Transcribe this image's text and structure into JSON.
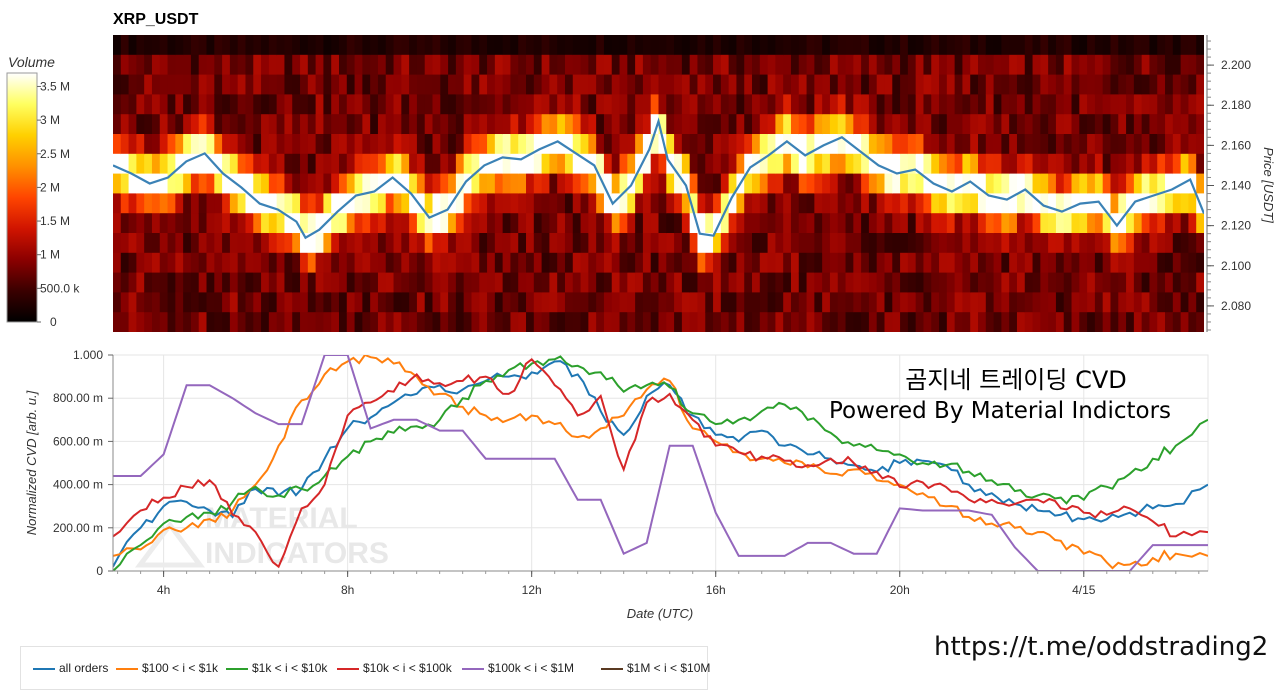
{
  "chart_data": [
    {
      "type": "heatmap",
      "title": "XRP_USDT",
      "colorbar": {
        "label": "Volume",
        "ticks": [
          "0",
          "500.0 k",
          "1 M",
          "1.5 M",
          "2 M",
          "2.5 M",
          "3 M",
          "3.5 M"
        ],
        "values": [
          0,
          500000,
          1000000,
          1500000,
          2000000,
          2500000,
          3000000,
          3500000
        ],
        "colors": [
          "#000000",
          "#3a0000",
          "#8b0000",
          "#d01400",
          "#ff4500",
          "#ff9000",
          "#ffd000",
          "#ffff60",
          "#ffffff"
        ]
      },
      "ylabel": "Price [USDT]",
      "yticks": [
        "2.080",
        "2.100",
        "2.120",
        "2.140",
        "2.160",
        "2.180",
        "2.200"
      ],
      "ytick_values": [
        2.08,
        2.1,
        2.12,
        2.14,
        2.16,
        2.18,
        2.2
      ],
      "ylim": [
        2.067,
        2.215
      ],
      "price_series": {
        "name": "price",
        "color": "#3b82b6",
        "x_hours": [
          2.9,
          3.3,
          3.7,
          4.1,
          4.5,
          4.9,
          5.3,
          5.7,
          6.1,
          6.5,
          6.9,
          7.1,
          7.4,
          7.8,
          8.2,
          8.6,
          9.0,
          9.4,
          9.8,
          10.2,
          10.6,
          11.0,
          11.4,
          11.8,
          12.2,
          12.6,
          13.0,
          13.4,
          13.8,
          14.2,
          14.6,
          14.8,
          15.0,
          15.4,
          15.7,
          16.0,
          16.4,
          16.8,
          17.2,
          17.6,
          18.0,
          18.4,
          18.8,
          19.2,
          19.6,
          20.0,
          20.4,
          20.8,
          21.2,
          21.6,
          22.0,
          22.4,
          22.8,
          23.2,
          23.6,
          24.0,
          24.4,
          24.8,
          25.2,
          25.6,
          26.0,
          26.4,
          26.7
        ],
        "price": [
          2.15,
          2.146,
          2.141,
          2.144,
          2.152,
          2.156,
          2.146,
          2.139,
          2.131,
          2.128,
          2.122,
          2.114,
          2.118,
          2.127,
          2.135,
          2.137,
          2.144,
          2.136,
          2.124,
          2.128,
          2.142,
          2.15,
          2.154,
          2.153,
          2.158,
          2.162,
          2.156,
          2.15,
          2.131,
          2.14,
          2.158,
          2.172,
          2.153,
          2.14,
          2.116,
          2.115,
          2.134,
          2.149,
          2.155,
          2.162,
          2.155,
          2.16,
          2.164,
          2.157,
          2.15,
          2.146,
          2.148,
          2.141,
          2.137,
          2.142,
          2.135,
          2.133,
          2.138,
          2.13,
          2.127,
          2.131,
          2.132,
          2.12,
          2.132,
          2.135,
          2.138,
          2.143,
          2.126
        ]
      }
    },
    {
      "type": "line",
      "xlabel": "Date (UTC)",
      "ylabel": "Normalized CVD [arb. u.]",
      "xticks": [
        "4h",
        "8h",
        "12h",
        "16h",
        "20h",
        "4/15"
      ],
      "xtick_hours": [
        4,
        8,
        12,
        16,
        20,
        24
      ],
      "xlim_hours": [
        2.9,
        26.7
      ],
      "yticks": [
        "0",
        "200.00 m",
        "400.00 m",
        "600.00 m",
        "800.00 m",
        "1.000"
      ],
      "ytick_values": [
        0,
        0.2,
        0.4,
        0.6,
        0.8,
        1.0
      ],
      "ylim": [
        0,
        1.0
      ],
      "x_hours": [
        2.9,
        3.5,
        4.0,
        4.5,
        5.0,
        5.5,
        6.0,
        6.5,
        7.0,
        7.5,
        8.0,
        8.5,
        9.0,
        9.5,
        10.0,
        10.5,
        11.0,
        11.5,
        12.0,
        12.5,
        13.0,
        13.5,
        14.0,
        14.5,
        15.0,
        15.5,
        16.0,
        16.5,
        17.0,
        17.5,
        18.0,
        18.5,
        19.0,
        19.5,
        20.0,
        20.5,
        21.0,
        21.5,
        22.0,
        22.5,
        23.0,
        23.5,
        24.0,
        24.5,
        25.0,
        25.5,
        26.0,
        26.7
      ],
      "series": [
        {
          "name": "all orders",
          "color": "#1f77b4",
          "values": [
            0.02,
            0.2,
            0.3,
            0.32,
            0.28,
            0.25,
            0.38,
            0.35,
            0.38,
            0.52,
            0.66,
            0.71,
            0.78,
            0.82,
            0.86,
            0.84,
            0.88,
            0.9,
            0.92,
            0.97,
            0.91,
            0.74,
            0.63,
            0.81,
            0.86,
            0.72,
            0.63,
            0.6,
            0.65,
            0.58,
            0.54,
            0.52,
            0.49,
            0.46,
            0.5,
            0.51,
            0.49,
            0.4,
            0.36,
            0.31,
            0.28,
            0.26,
            0.24,
            0.24,
            0.27,
            0.29,
            0.31,
            0.4
          ]
        },
        {
          "name": "$100 < i < $1k",
          "color": "#ff7f0e",
          "values": [
            0.07,
            0.1,
            0.19,
            0.2,
            0.24,
            0.28,
            0.4,
            0.58,
            0.79,
            0.91,
            0.97,
            0.99,
            0.96,
            0.9,
            0.82,
            0.76,
            0.72,
            0.7,
            0.72,
            0.68,
            0.62,
            0.66,
            0.72,
            0.84,
            0.88,
            0.66,
            0.6,
            0.55,
            0.52,
            0.5,
            0.48,
            0.45,
            0.47,
            0.42,
            0.4,
            0.36,
            0.3,
            0.25,
            0.22,
            0.2,
            0.18,
            0.14,
            0.08,
            0.04,
            0.03,
            0.06,
            0.08,
            0.07
          ]
        },
        {
          "name": "$1k < i < $10k",
          "color": "#2ca02c",
          "values": [
            0.0,
            0.12,
            0.22,
            0.25,
            0.27,
            0.32,
            0.39,
            0.35,
            0.38,
            0.44,
            0.53,
            0.6,
            0.64,
            0.67,
            0.7,
            0.8,
            0.88,
            0.93,
            0.96,
            0.98,
            0.95,
            0.92,
            0.83,
            0.86,
            0.85,
            0.73,
            0.68,
            0.7,
            0.74,
            0.77,
            0.7,
            0.64,
            0.58,
            0.56,
            0.54,
            0.5,
            0.49,
            0.46,
            0.42,
            0.37,
            0.35,
            0.34,
            0.33,
            0.39,
            0.45,
            0.52,
            0.58,
            0.7
          ]
        },
        {
          "name": "$10k < i < $100k",
          "color": "#d62728",
          "values": [
            0.16,
            0.28,
            0.34,
            0.39,
            0.42,
            0.26,
            0.18,
            0.02,
            0.29,
            0.4,
            0.72,
            0.78,
            0.83,
            0.91,
            0.87,
            0.88,
            0.9,
            0.82,
            0.98,
            0.86,
            0.72,
            0.81,
            0.47,
            0.78,
            0.82,
            0.7,
            0.58,
            0.55,
            0.53,
            0.51,
            0.49,
            0.52,
            0.5,
            0.46,
            0.39,
            0.41,
            0.39,
            0.33,
            0.33,
            0.31,
            0.33,
            0.29,
            0.27,
            0.26,
            0.29,
            0.23,
            0.16,
            0.18
          ]
        },
        {
          "name": "$100k < i < $1M",
          "color": "#9467bd",
          "values": [
            0.44,
            0.44,
            0.54,
            0.86,
            0.86,
            0.8,
            0.73,
            0.68,
            0.68,
            1.0,
            1.0,
            0.66,
            0.7,
            0.7,
            0.65,
            0.65,
            0.52,
            0.52,
            0.52,
            0.52,
            0.33,
            0.33,
            0.08,
            0.13,
            0.58,
            0.58,
            0.27,
            0.07,
            0.07,
            0.07,
            0.13,
            0.13,
            0.08,
            0.08,
            0.29,
            0.28,
            0.28,
            0.28,
            0.26,
            0.11,
            0.0,
            0.0,
            0.0,
            0.0,
            0.0,
            0.12,
            0.12,
            0.12
          ]
        },
        {
          "name": "$1M < i < $10M",
          "color": "#5a3a22",
          "values": []
        }
      ]
    }
  ],
  "annotation": {
    "line1": "곰지네 트레이딩 CVD",
    "line2": "Powered By Material Indictors"
  },
  "watermark": "MATERIAL INDICATORS",
  "footer": {
    "url": "https://t.me/oddstrading2"
  }
}
